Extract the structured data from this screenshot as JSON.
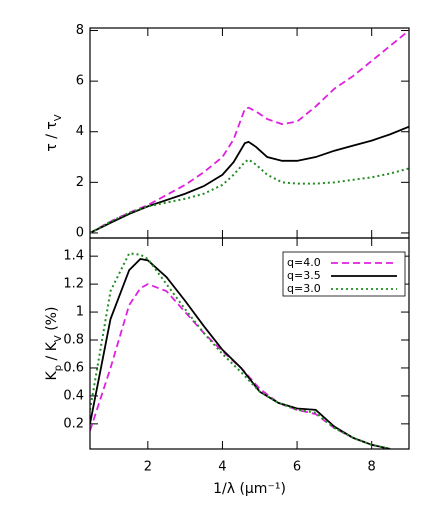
{
  "chart_data": [
    {
      "type": "line",
      "ylabel": [
        "τ / τ",
        "V"
      ],
      "x": [
        0.45,
        1,
        1.5,
        2,
        2.5,
        3,
        3.5,
        4,
        4.3,
        4.6,
        4.7,
        4.9,
        5.2,
        5.6,
        6,
        6.5,
        7,
        7.5,
        8,
        8.5,
        9
      ],
      "series": [
        {
          "name": "q=4.0",
          "color": "#e020e0",
          "dash": "dashed",
          "values": [
            0,
            0.45,
            0.8,
            1.1,
            1.5,
            1.9,
            2.4,
            3.0,
            3.7,
            4.9,
            4.95,
            4.8,
            4.5,
            4.3,
            4.4,
            5.0,
            5.7,
            6.2,
            6.8,
            7.4,
            8.0
          ]
        },
        {
          "name": "q=3.5",
          "color": "#000000",
          "dash": "solid",
          "values": [
            0,
            0.4,
            0.75,
            1.05,
            1.3,
            1.55,
            1.85,
            2.3,
            2.8,
            3.55,
            3.6,
            3.4,
            3.0,
            2.85,
            2.85,
            3.0,
            3.25,
            3.45,
            3.65,
            3.9,
            4.2
          ]
        },
        {
          "name": "q=3.0",
          "color": "#228b22",
          "dash": "dotted",
          "values": [
            0,
            0.45,
            0.8,
            1.05,
            1.2,
            1.35,
            1.55,
            1.9,
            2.3,
            2.8,
            2.9,
            2.7,
            2.3,
            2.0,
            1.95,
            1.95,
            2.0,
            2.1,
            2.2,
            2.35,
            2.55
          ]
        }
      ],
      "xlim": [
        0.45,
        9
      ],
      "ylim": [
        -0.2,
        8.1
      ],
      "xticks": [
        2,
        4,
        6,
        8
      ],
      "yticks": [
        0,
        2,
        4,
        6,
        8
      ],
      "show_xtick_labels": false,
      "legend": false
    },
    {
      "type": "line",
      "ylabel": [
        "K",
        "p",
        " / K",
        "V",
        " (%)"
      ],
      "xlabel": "1/λ (μm⁻¹)",
      "x": [
        0.45,
        1,
        1.5,
        1.8,
        2,
        2.5,
        3,
        3.5,
        4,
        4.5,
        5,
        5.5,
        6,
        6.5,
        7,
        7.5,
        8,
        8.5
      ],
      "series": [
        {
          "name": "q=4.0",
          "color": "#e020e0",
          "dash": "dashed",
          "values": [
            0.15,
            0.6,
            1.05,
            1.17,
            1.2,
            1.15,
            1.0,
            0.85,
            0.72,
            0.6,
            0.45,
            0.35,
            0.3,
            0.27,
            0.17,
            0.1,
            0.05,
            0.02
          ]
        },
        {
          "name": "q=3.5",
          "color": "#000000",
          "dash": "solid",
          "values": [
            0.2,
            0.95,
            1.3,
            1.38,
            1.37,
            1.25,
            1.08,
            0.9,
            0.73,
            0.6,
            0.43,
            0.35,
            0.31,
            0.3,
            0.18,
            0.1,
            0.05,
            0.02
          ]
        },
        {
          "name": "q=3.0",
          "color": "#228b22",
          "dash": "dotted",
          "values": [
            0.3,
            1.15,
            1.42,
            1.41,
            1.38,
            1.2,
            1.02,
            0.85,
            0.7,
            0.57,
            0.43,
            0.35,
            0.3,
            0.28,
            0.17,
            0.1,
            0.05,
            0.02
          ]
        }
      ],
      "xlim": [
        0.45,
        9
      ],
      "ylim": [
        0.02,
        1.53
      ],
      "xticks": [
        2,
        4,
        6,
        8
      ],
      "yticks": [
        0.2,
        0.4,
        0.6,
        0.8,
        1.0,
        1.2,
        1.4
      ],
      "show_xtick_labels": true,
      "legend": "upper right"
    }
  ]
}
